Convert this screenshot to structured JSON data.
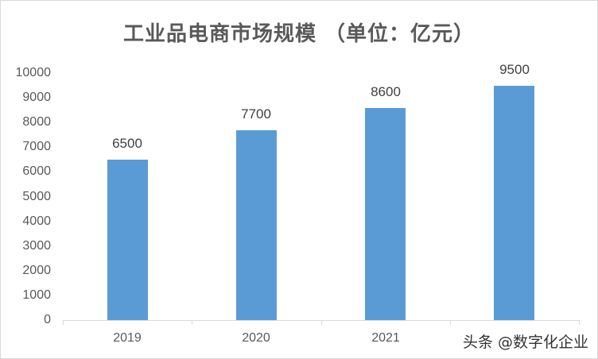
{
  "chart_data": {
    "type": "bar",
    "title": "工业品电商市场规模 （单位：亿元）",
    "categories": [
      "2019",
      "2020",
      "2021",
      ""
    ],
    "values": [
      6500,
      7700,
      8600,
      9500
    ],
    "data_labels": [
      "6500",
      "7700",
      "8600",
      "9500"
    ],
    "xlabel": "",
    "ylabel": "",
    "ylim": [
      0,
      10000
    ],
    "yticks": [
      "0",
      "1000",
      "2000",
      "3000",
      "4000",
      "5000",
      "6000",
      "7000",
      "8000",
      "9000",
      "10000"
    ],
    "grid": false,
    "legend": "none",
    "bar_color": "#5b9bd5"
  },
  "watermark": "头条 @数字化企业"
}
